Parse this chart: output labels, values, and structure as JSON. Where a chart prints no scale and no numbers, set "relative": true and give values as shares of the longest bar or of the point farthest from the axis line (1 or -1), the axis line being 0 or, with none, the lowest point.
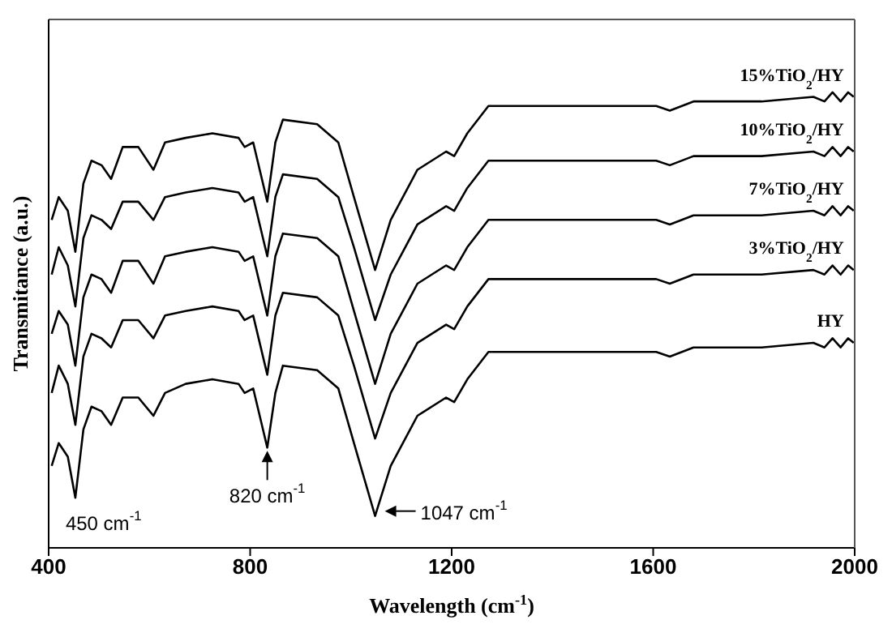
{
  "chart_data": {
    "type": "line",
    "relative": true,
    "xlabel": "Wavelength (cm$^{-1}$)",
    "ylabel": "Transmitance (a.u.)",
    "x": [
      406,
      420,
      438,
      453,
      469,
      485,
      505,
      524,
      547,
      578,
      608,
      631,
      672,
      725,
      777,
      789,
      806,
      834,
      850,
      865,
      933,
      975,
      1006,
      1048,
      1079,
      1132,
      1189,
      1205,
      1231,
      1273,
      1398,
      1606,
      1633,
      1680,
      1815,
      1918,
      1940,
      1956,
      1972,
      1987,
      1998
    ],
    "xlim": [
      400,
      2000
    ],
    "xticks": [
      400,
      800,
      1200,
      1600,
      2000
    ],
    "marker": "none",
    "line_style": "solid",
    "series": [
      {
        "name": "15%TiO$_{2}$/HY",
        "color": "#000000",
        "values": [
          0.72,
          0.77,
          0.74,
          0.65,
          0.8,
          0.85,
          0.84,
          0.81,
          0.88,
          0.88,
          0.83,
          0.89,
          0.9,
          0.91,
          0.9,
          0.88,
          0.89,
          0.76,
          0.89,
          0.94,
          0.93,
          0.89,
          0.77,
          0.61,
          0.72,
          0.83,
          0.87,
          0.86,
          0.91,
          0.97,
          0.97,
          0.97,
          0.96,
          0.98,
          0.98,
          0.99,
          0.98,
          1.0,
          0.98,
          1.0,
          0.99
        ]
      },
      {
        "name": "10%TiO$_{2}$/HY",
        "color": "#000000",
        "values": [
          0.6,
          0.66,
          0.62,
          0.53,
          0.68,
          0.73,
          0.72,
          0.7,
          0.76,
          0.76,
          0.72,
          0.77,
          0.78,
          0.79,
          0.78,
          0.76,
          0.77,
          0.64,
          0.77,
          0.82,
          0.81,
          0.77,
          0.66,
          0.5,
          0.6,
          0.71,
          0.75,
          0.74,
          0.79,
          0.85,
          0.85,
          0.85,
          0.84,
          0.86,
          0.86,
          0.87,
          0.86,
          0.88,
          0.86,
          0.88,
          0.87
        ]
      },
      {
        "name": "7%TiO$_{2}$/HY",
        "color": "#000000",
        "values": [
          0.47,
          0.52,
          0.49,
          0.4,
          0.55,
          0.6,
          0.59,
          0.56,
          0.63,
          0.63,
          0.58,
          0.64,
          0.65,
          0.66,
          0.65,
          0.63,
          0.64,
          0.51,
          0.64,
          0.69,
          0.68,
          0.64,
          0.52,
          0.36,
          0.47,
          0.58,
          0.62,
          0.61,
          0.66,
          0.72,
          0.72,
          0.72,
          0.71,
          0.73,
          0.73,
          0.74,
          0.73,
          0.75,
          0.73,
          0.75,
          0.74
        ]
      },
      {
        "name": "3%TiO$_{2}$/HY",
        "color": "#000000",
        "values": [
          0.34,
          0.4,
          0.36,
          0.27,
          0.42,
          0.47,
          0.46,
          0.44,
          0.5,
          0.5,
          0.46,
          0.51,
          0.52,
          0.53,
          0.52,
          0.5,
          0.51,
          0.38,
          0.51,
          0.56,
          0.55,
          0.51,
          0.4,
          0.24,
          0.34,
          0.45,
          0.49,
          0.48,
          0.53,
          0.59,
          0.59,
          0.59,
          0.58,
          0.6,
          0.6,
          0.61,
          0.6,
          0.62,
          0.6,
          0.62,
          0.61
        ]
      },
      {
        "name": "HY",
        "color": "#000000",
        "values": [
          0.18,
          0.23,
          0.2,
          0.11,
          0.26,
          0.31,
          0.3,
          0.27,
          0.33,
          0.33,
          0.29,
          0.34,
          0.36,
          0.37,
          0.36,
          0.34,
          0.35,
          0.22,
          0.34,
          0.4,
          0.39,
          0.35,
          0.23,
          0.07,
          0.18,
          0.29,
          0.33,
          0.32,
          0.37,
          0.43,
          0.43,
          0.43,
          0.42,
          0.44,
          0.44,
          0.45,
          0.44,
          0.46,
          0.44,
          0.46,
          0.45
        ]
      }
    ],
    "annotations": [
      {
        "text": "450 cm$^{-1}$",
        "x": 453,
        "y": 0.11
      },
      {
        "text": "820 cm$^{-1}$",
        "x": 834,
        "y": 0.22
      },
      {
        "text": "1047 cm$^{-1}$",
        "x": 1048,
        "y": 0.07
      }
    ]
  }
}
